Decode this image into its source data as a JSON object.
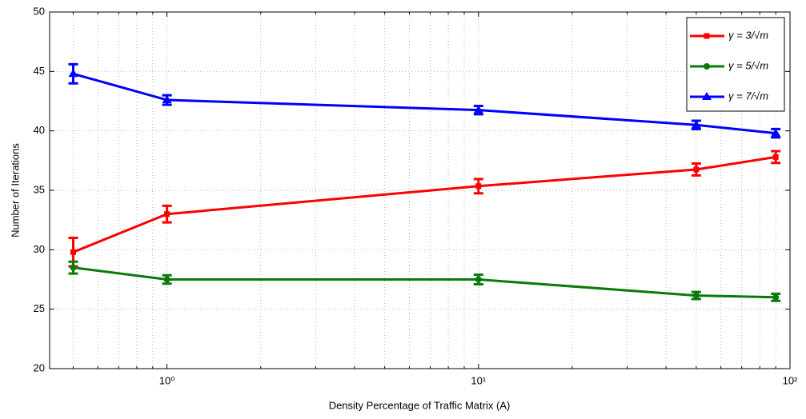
{
  "chart_data": {
    "type": "line",
    "xlabel": "Density Percentage of Traffic Matrix (A)",
    "ylabel": "Number of Iterations",
    "x": [
      0.5,
      1,
      10,
      50,
      90
    ],
    "series": [
      {
        "name": "γ = 3/√m",
        "color": "#ff0000",
        "marker": "square",
        "values": [
          29.8,
          33.0,
          35.35,
          36.75,
          37.8
        ],
        "errors": [
          1.2,
          0.7,
          0.6,
          0.5,
          0.5
        ]
      },
      {
        "name": "γ = 5/√m",
        "color": "#0a7a0a",
        "marker": "circle",
        "values": [
          28.5,
          27.5,
          27.5,
          26.15,
          26.0
        ],
        "errors": [
          0.5,
          0.35,
          0.4,
          0.3,
          0.3
        ]
      },
      {
        "name": "γ = 7/√m",
        "color": "#0000ff",
        "marker": "triangle",
        "values": [
          44.8,
          42.6,
          41.75,
          40.5,
          39.8
        ],
        "errors": [
          0.8,
          0.4,
          0.35,
          0.35,
          0.35
        ]
      }
    ],
    "xscale": "log",
    "xlim": [
      0.42,
      100
    ],
    "xticks": [
      {
        "value": 1,
        "label": "10⁰"
      },
      {
        "value": 10,
        "label": "10¹"
      },
      {
        "value": 100,
        "label": "10²"
      }
    ],
    "xminorticks": [
      0.5,
      0.6,
      0.7,
      0.8,
      0.9,
      2,
      3,
      4,
      5,
      6,
      7,
      8,
      9,
      20,
      30,
      40,
      50,
      60,
      70,
      80,
      90
    ],
    "ylim": [
      20,
      50
    ],
    "yticks": [
      20,
      25,
      30,
      35,
      40,
      45,
      50
    ],
    "grid": true,
    "legend": "upper right"
  }
}
